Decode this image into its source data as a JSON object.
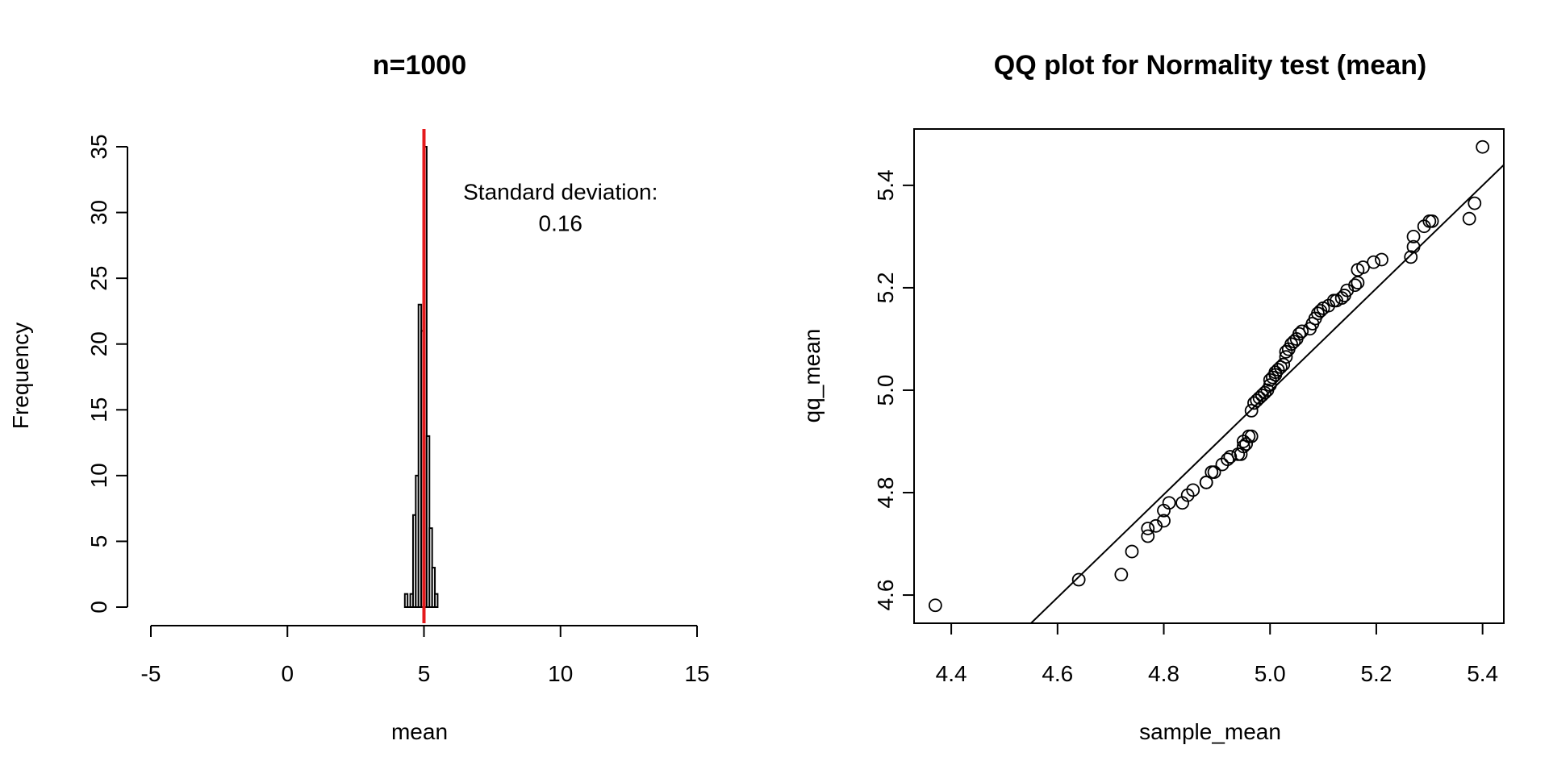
{
  "chart_data": [
    {
      "type": "bar",
      "title": "n=1000",
      "xlabel": "mean",
      "ylabel": "Frequency",
      "xlim": [
        -5,
        15
      ],
      "ylim": [
        0,
        35
      ],
      "x_ticks": [
        -5,
        0,
        5,
        10,
        15
      ],
      "y_ticks": [
        0,
        5,
        10,
        15,
        20,
        25,
        30,
        35
      ],
      "bins": [
        {
          "x0": 4.3,
          "x1": 4.4,
          "count": 1
        },
        {
          "x0": 4.4,
          "x1": 4.5,
          "count": 0
        },
        {
          "x0": 4.5,
          "x1": 4.6,
          "count": 1
        },
        {
          "x0": 4.6,
          "x1": 4.7,
          "count": 7
        },
        {
          "x0": 4.7,
          "x1": 4.8,
          "count": 10
        },
        {
          "x0": 4.8,
          "x1": 4.9,
          "count": 23
        },
        {
          "x0": 4.9,
          "x1": 5.0,
          "count": 21
        },
        {
          "x0": 5.0,
          "x1": 5.1,
          "count": 35
        },
        {
          "x0": 5.1,
          "x1": 5.2,
          "count": 13
        },
        {
          "x0": 5.2,
          "x1": 5.3,
          "count": 6
        },
        {
          "x0": 5.3,
          "x1": 5.4,
          "count": 3
        },
        {
          "x0": 5.4,
          "x1": 5.5,
          "count": 1
        }
      ],
      "vline": {
        "x": 5.0,
        "color": "#e41a1c"
      },
      "annotation": {
        "line1": "Standard deviation:",
        "line2": "0.16",
        "x": 10,
        "y1": 31,
        "y2": 28.6
      },
      "grid": false,
      "bar_fill": "#ffffff",
      "bar_stroke": "#000000"
    },
    {
      "type": "scatter",
      "title": "QQ plot for Normality test (mean)",
      "xlabel": "sample_mean",
      "ylabel": "qq_mean",
      "xlim": [
        4.33,
        5.44
      ],
      "ylim": [
        4.545,
        5.51
      ],
      "x_ticks": [
        4.4,
        4.6,
        4.8,
        5.0,
        5.2,
        5.4
      ],
      "y_ticks": [
        4.6,
        4.8,
        5.0,
        5.2,
        5.4
      ],
      "grid": false,
      "reference_line": {
        "x1": 4.55,
        "y1": 4.545,
        "x2": 5.44,
        "y2": 5.44
      },
      "points": [
        [
          4.37,
          4.58
        ],
        [
          4.64,
          4.63
        ],
        [
          4.72,
          4.64
        ],
        [
          4.74,
          4.685
        ],
        [
          4.77,
          4.715
        ],
        [
          4.77,
          4.73
        ],
        [
          4.785,
          4.735
        ],
        [
          4.8,
          4.745
        ],
        [
          4.8,
          4.765
        ],
        [
          4.81,
          4.78
        ],
        [
          4.835,
          4.78
        ],
        [
          4.845,
          4.795
        ],
        [
          4.855,
          4.805
        ],
        [
          4.88,
          4.82
        ],
        [
          4.88,
          4.82
        ],
        [
          4.89,
          4.84
        ],
        [
          4.895,
          4.84
        ],
        [
          4.91,
          4.855
        ],
        [
          4.92,
          4.865
        ],
        [
          4.925,
          4.87
        ],
        [
          4.94,
          4.875
        ],
        [
          4.945,
          4.875
        ],
        [
          4.95,
          4.89
        ],
        [
          4.95,
          4.9
        ],
        [
          4.955,
          4.895
        ],
        [
          4.96,
          4.91
        ],
        [
          4.965,
          4.91
        ],
        [
          4.965,
          4.96
        ],
        [
          4.97,
          4.975
        ],
        [
          4.975,
          4.98
        ],
        [
          4.98,
          4.985
        ],
        [
          4.985,
          4.99
        ],
        [
          4.99,
          4.995
        ],
        [
          4.995,
          5.0
        ],
        [
          5.0,
          5.01
        ],
        [
          5.0,
          5.02
        ],
        [
          5.005,
          5.025
        ],
        [
          5.01,
          5.03
        ],
        [
          5.01,
          5.035
        ],
        [
          5.015,
          5.04
        ],
        [
          5.02,
          5.045
        ],
        [
          5.025,
          5.05
        ],
        [
          5.03,
          5.065
        ],
        [
          5.03,
          5.075
        ],
        [
          5.035,
          5.08
        ],
        [
          5.04,
          5.09
        ],
        [
          5.045,
          5.095
        ],
        [
          5.05,
          5.1
        ],
        [
          5.055,
          5.11
        ],
        [
          5.06,
          5.115
        ],
        [
          5.075,
          5.12
        ],
        [
          5.08,
          5.13
        ],
        [
          5.085,
          5.14
        ],
        [
          5.09,
          5.15
        ],
        [
          5.095,
          5.155
        ],
        [
          5.1,
          5.16
        ],
        [
          5.11,
          5.165
        ],
        [
          5.12,
          5.175
        ],
        [
          5.125,
          5.175
        ],
        [
          5.135,
          5.18
        ],
        [
          5.14,
          5.185
        ],
        [
          5.145,
          5.195
        ],
        [
          5.16,
          5.205
        ],
        [
          5.165,
          5.21
        ],
        [
          5.165,
          5.235
        ],
        [
          5.175,
          5.24
        ],
        [
          5.195,
          5.25
        ],
        [
          5.21,
          5.255
        ],
        [
          5.265,
          5.26
        ],
        [
          5.27,
          5.28
        ],
        [
          5.27,
          5.3
        ],
        [
          5.29,
          5.32
        ],
        [
          5.3,
          5.33
        ],
        [
          5.305,
          5.33
        ],
        [
          5.375,
          5.335
        ],
        [
          5.385,
          5.365
        ],
        [
          5.4,
          5.475
        ]
      ],
      "marker": "open-circle"
    }
  ]
}
